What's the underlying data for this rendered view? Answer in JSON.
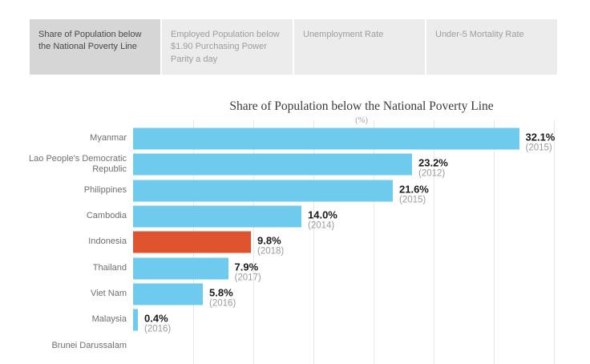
{
  "tab_bar": {
    "tabs": [
      {
        "label": "Share of Population below the National Poverty Line",
        "selected": true
      },
      {
        "label": "Employed Population below $1.90 Purchasing Power Parity a day",
        "selected": false
      },
      {
        "label": "Unemployment Rate",
        "selected": false
      },
      {
        "label": "Under-5 Mortality Rate",
        "selected": false
      }
    ]
  },
  "chart_data": {
    "type": "bar",
    "orientation": "horizontal",
    "title": "Share of Population below the National Poverty Line",
    "subtitle": "(%)",
    "categories": [
      "Myanmar",
      "Lao People's Democratic Republic",
      "Philippines",
      "Cambodia",
      "Indonesia",
      "Thailand",
      "Viet Nam",
      "Malaysia",
      "Brunei Darussalam"
    ],
    "values": [
      32.1,
      23.2,
      21.6,
      14.0,
      9.8,
      7.9,
      5.8,
      0.4,
      null
    ],
    "value_labels": [
      "32.1%",
      "23.2%",
      "21.6%",
      "14.0%",
      "9.8%",
      "7.9%",
      "5.8%",
      "0.4%",
      ""
    ],
    "year_labels": [
      "(2015)",
      "(2012)",
      "(2015)",
      "(2014)",
      "(2018)",
      "(2017)",
      "(2016)",
      "(2016)",
      ""
    ],
    "highlighted_category": "Indonesia",
    "xlim": [
      0,
      38
    ],
    "gridline_step": 5,
    "grid": "vertical",
    "legend": "none",
    "colors": {
      "bar": "#6ecbee",
      "highlight": "#e0532f",
      "gridline": "#e7e7e7",
      "category_label": "#6f6f6f",
      "value_label": "#1a1a1a",
      "year_label": "#9b9b9b"
    }
  }
}
